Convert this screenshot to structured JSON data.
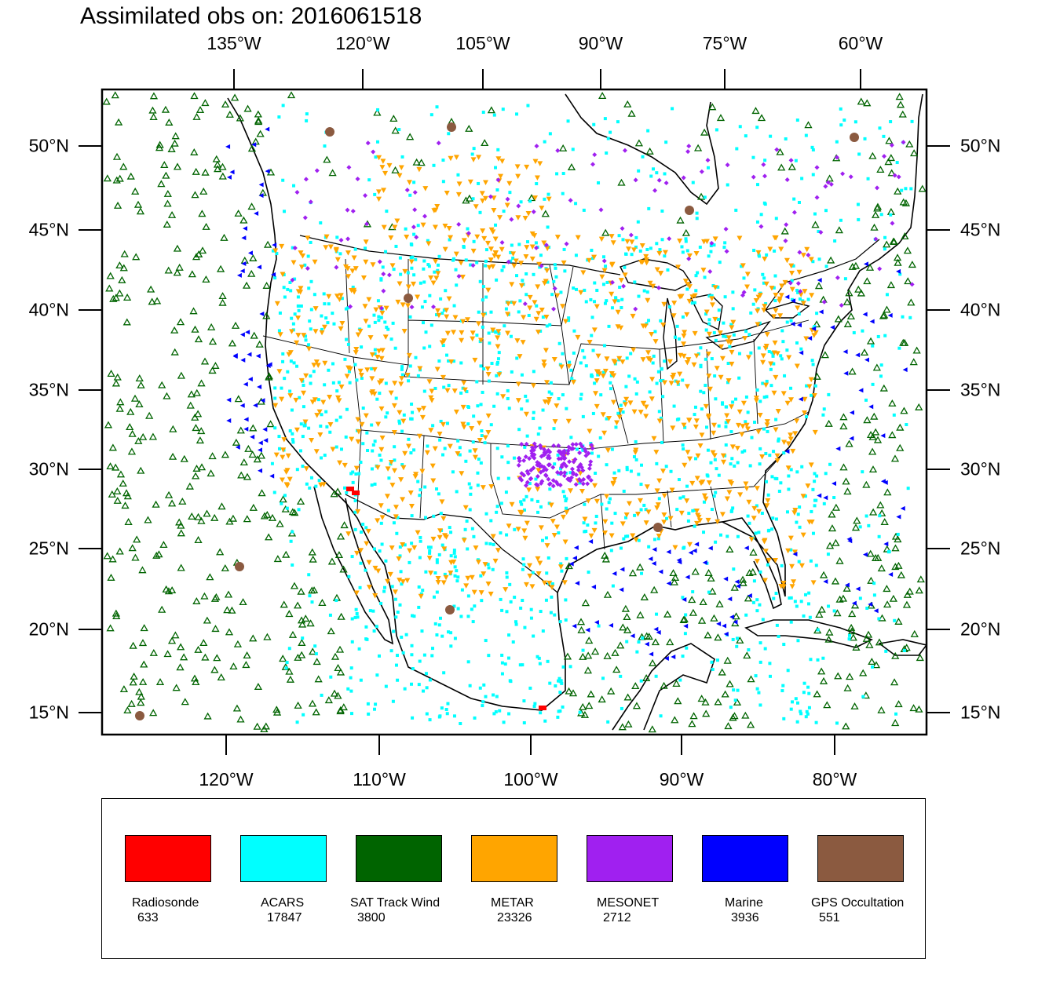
{
  "title": "Assimilated obs on: 2016061518",
  "axes": {
    "top_lon_labels": [
      "135°W",
      "120°W",
      "105°W",
      "90°W",
      "75°W",
      "60°W"
    ],
    "bottom_lon_labels": [
      "120°W",
      "110°W",
      "100°W",
      "90°W",
      "80°W"
    ],
    "lat_labels": [
      "50°N",
      "45°N",
      "40°N",
      "35°N",
      "30°N",
      "25°N",
      "20°N",
      "15°N"
    ]
  },
  "legend": [
    {
      "name": "Radiosonde",
      "count": "633",
      "color": "#ff0000"
    },
    {
      "name": "ACARS",
      "count": "17847",
      "color": "#00ffff"
    },
    {
      "name": "SAT Track Wind",
      "count": "3800",
      "color": "#006400"
    },
    {
      "name": "METAR",
      "count": "23326",
      "color": "#ffa500"
    },
    {
      "name": "MESONET",
      "count": "2712",
      "color": "#a020f0"
    },
    {
      "name": "Marine",
      "count": "3936",
      "color": "#0000ff"
    },
    {
      "name": "GPS Occultation",
      "count": "551",
      "color": "#8b5a40"
    }
  ]
}
